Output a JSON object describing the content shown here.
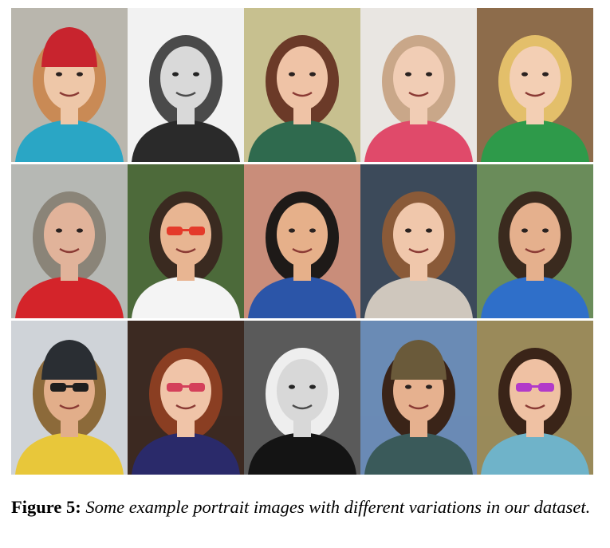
{
  "figure": {
    "label": "Figure 5:",
    "caption": "Some example portrait images with different variations in our dataset."
  },
  "grid": {
    "rows": 3,
    "columns": 5,
    "tiles": [
      {
        "row": 0,
        "col": 0,
        "name": "portrait-toddler-red-beanie",
        "bg": "#b9b6ad",
        "skin": "#eec7a8",
        "hair": "#c98a55",
        "shirt": "#2aa6c5",
        "hat": "#c8242e",
        "glasses": "",
        "gray": false
      },
      {
        "row": 0,
        "col": 1,
        "name": "portrait-woman-bw-smiling",
        "bg": "#f2f2f2",
        "skin": "#d9d9d9",
        "hair": "#4a4a4a",
        "shirt": "#2a2a2a",
        "hat": "",
        "glasses": "",
        "gray": true
      },
      {
        "row": 0,
        "col": 2,
        "name": "portrait-woman-selfie-green",
        "bg": "#c7c08f",
        "skin": "#efc3a6",
        "hair": "#6b3a28",
        "shirt": "#2f6a4e",
        "hat": "",
        "glasses": "",
        "gray": false
      },
      {
        "row": 0,
        "col": 3,
        "name": "portrait-baby-blanket",
        "bg": "#e9e6e2",
        "skin": "#f1cdb5",
        "hair": "#c9a789",
        "shirt": "#e04a6a",
        "hat": "",
        "glasses": "",
        "gray": false
      },
      {
        "row": 0,
        "col": 4,
        "name": "portrait-boy-living-room",
        "bg": "#8d6c4b",
        "skin": "#f3cfb4",
        "hair": "#e3bf6a",
        "shirt": "#2e9a4a",
        "hat": "",
        "glasses": "",
        "gray": false
      },
      {
        "row": 1,
        "col": 0,
        "name": "portrait-man-red-shirt",
        "bg": "#b6b8b4",
        "skin": "#e1b39a",
        "hair": "#8a8478",
        "shirt": "#d4242a",
        "hat": "",
        "glasses": "",
        "gray": false
      },
      {
        "row": 1,
        "col": 1,
        "name": "portrait-man-red-sunglasses",
        "bg": "#4d6a3a",
        "skin": "#e8b592",
        "hair": "#3a2a20",
        "shirt": "#f4f4f4",
        "hat": "",
        "glasses": "#e43a2a",
        "gray": false
      },
      {
        "row": 1,
        "col": 2,
        "name": "portrait-child-mustache-prop",
        "bg": "#c98d7a",
        "skin": "#e6b08a",
        "hair": "#1e1a18",
        "shirt": "#2b55a8",
        "hat": "",
        "glasses": "",
        "gray": false
      },
      {
        "row": 1,
        "col": 3,
        "name": "portrait-woman-long-hair",
        "bg": "#3c4a5a",
        "skin": "#f0c7ab",
        "hair": "#8a5a38",
        "shirt": "#cfc7bd",
        "hat": "",
        "glasses": "",
        "gray": false
      },
      {
        "row": 1,
        "col": 4,
        "name": "portrait-man-blue-shirt",
        "bg": "#6a8c5a",
        "skin": "#e5b08d",
        "hair": "#3a2a1e",
        "shirt": "#2f6fc9",
        "hat": "",
        "glasses": "",
        "gray": false
      },
      {
        "row": 2,
        "col": 0,
        "name": "portrait-cyclist-helmet",
        "bg": "#cfd3d8",
        "skin": "#e2ae8a",
        "hair": "#8c6a3a",
        "shirt": "#e8c73a",
        "hat": "#2a2e33",
        "glasses": "#1e1e1e",
        "gray": false
      },
      {
        "row": 2,
        "col": 1,
        "name": "portrait-woman-red-glasses",
        "bg": "#3c2a22",
        "skin": "#f0c4a8",
        "hair": "#8a3e22",
        "shirt": "#2a2a6a",
        "hat": "",
        "glasses": "#d4405a",
        "gray": false
      },
      {
        "row": 2,
        "col": 2,
        "name": "portrait-woman-bw-updo",
        "bg": "#5a5a5a",
        "skin": "#d8d8d8",
        "hair": "#eeeeee",
        "shirt": "#141414",
        "hat": "",
        "glasses": "",
        "gray": true
      },
      {
        "row": 2,
        "col": 3,
        "name": "portrait-woman-knit-hat-snow",
        "bg": "#6a8bb5",
        "skin": "#e6b18f",
        "hair": "#3a2418",
        "shirt": "#3a5a5a",
        "hat": "#6a5a3a",
        "glasses": "",
        "gray": false
      },
      {
        "row": 2,
        "col": 4,
        "name": "portrait-woman-purple-sunglasses",
        "bg": "#9a8a5a",
        "skin": "#efc1a3",
        "hair": "#3a2418",
        "shirt": "#6fb3c9",
        "hat": "",
        "glasses": "#b23ac9",
        "gray": false
      }
    ]
  }
}
